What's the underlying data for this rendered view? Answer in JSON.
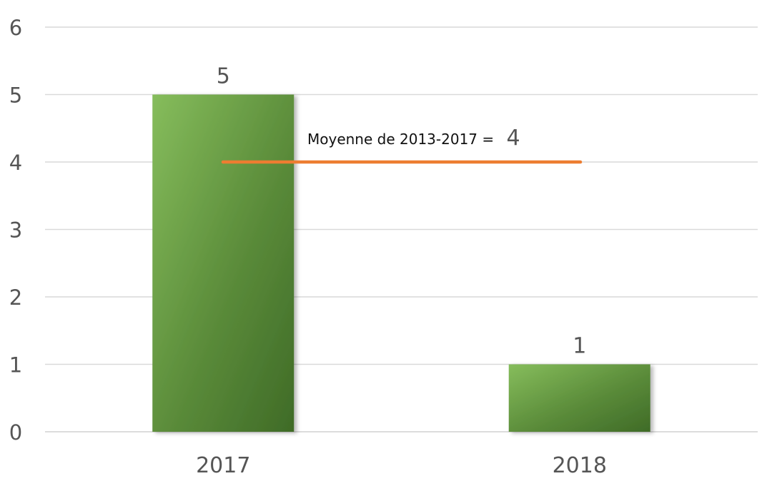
{
  "chart_data": {
    "type": "bar",
    "categories": [
      "2017",
      "2018"
    ],
    "values": [
      5,
      1
    ],
    "data_labels": [
      "5",
      "1"
    ],
    "title": "",
    "xlabel": "",
    "ylabel": "",
    "ylim": [
      0,
      6
    ],
    "yticks": [
      "0",
      "1",
      "2",
      "3",
      "4",
      "5",
      "6"
    ],
    "grid": true,
    "bar_color": "#5b8c3a",
    "bar_color_light": "#86bd5c",
    "bar_color_dark": "#3f6b27",
    "reference_line": {
      "value": 4,
      "label": "Moyenne de 2013-2017 =",
      "value_label": "4",
      "color": "#ed7d31"
    }
  }
}
